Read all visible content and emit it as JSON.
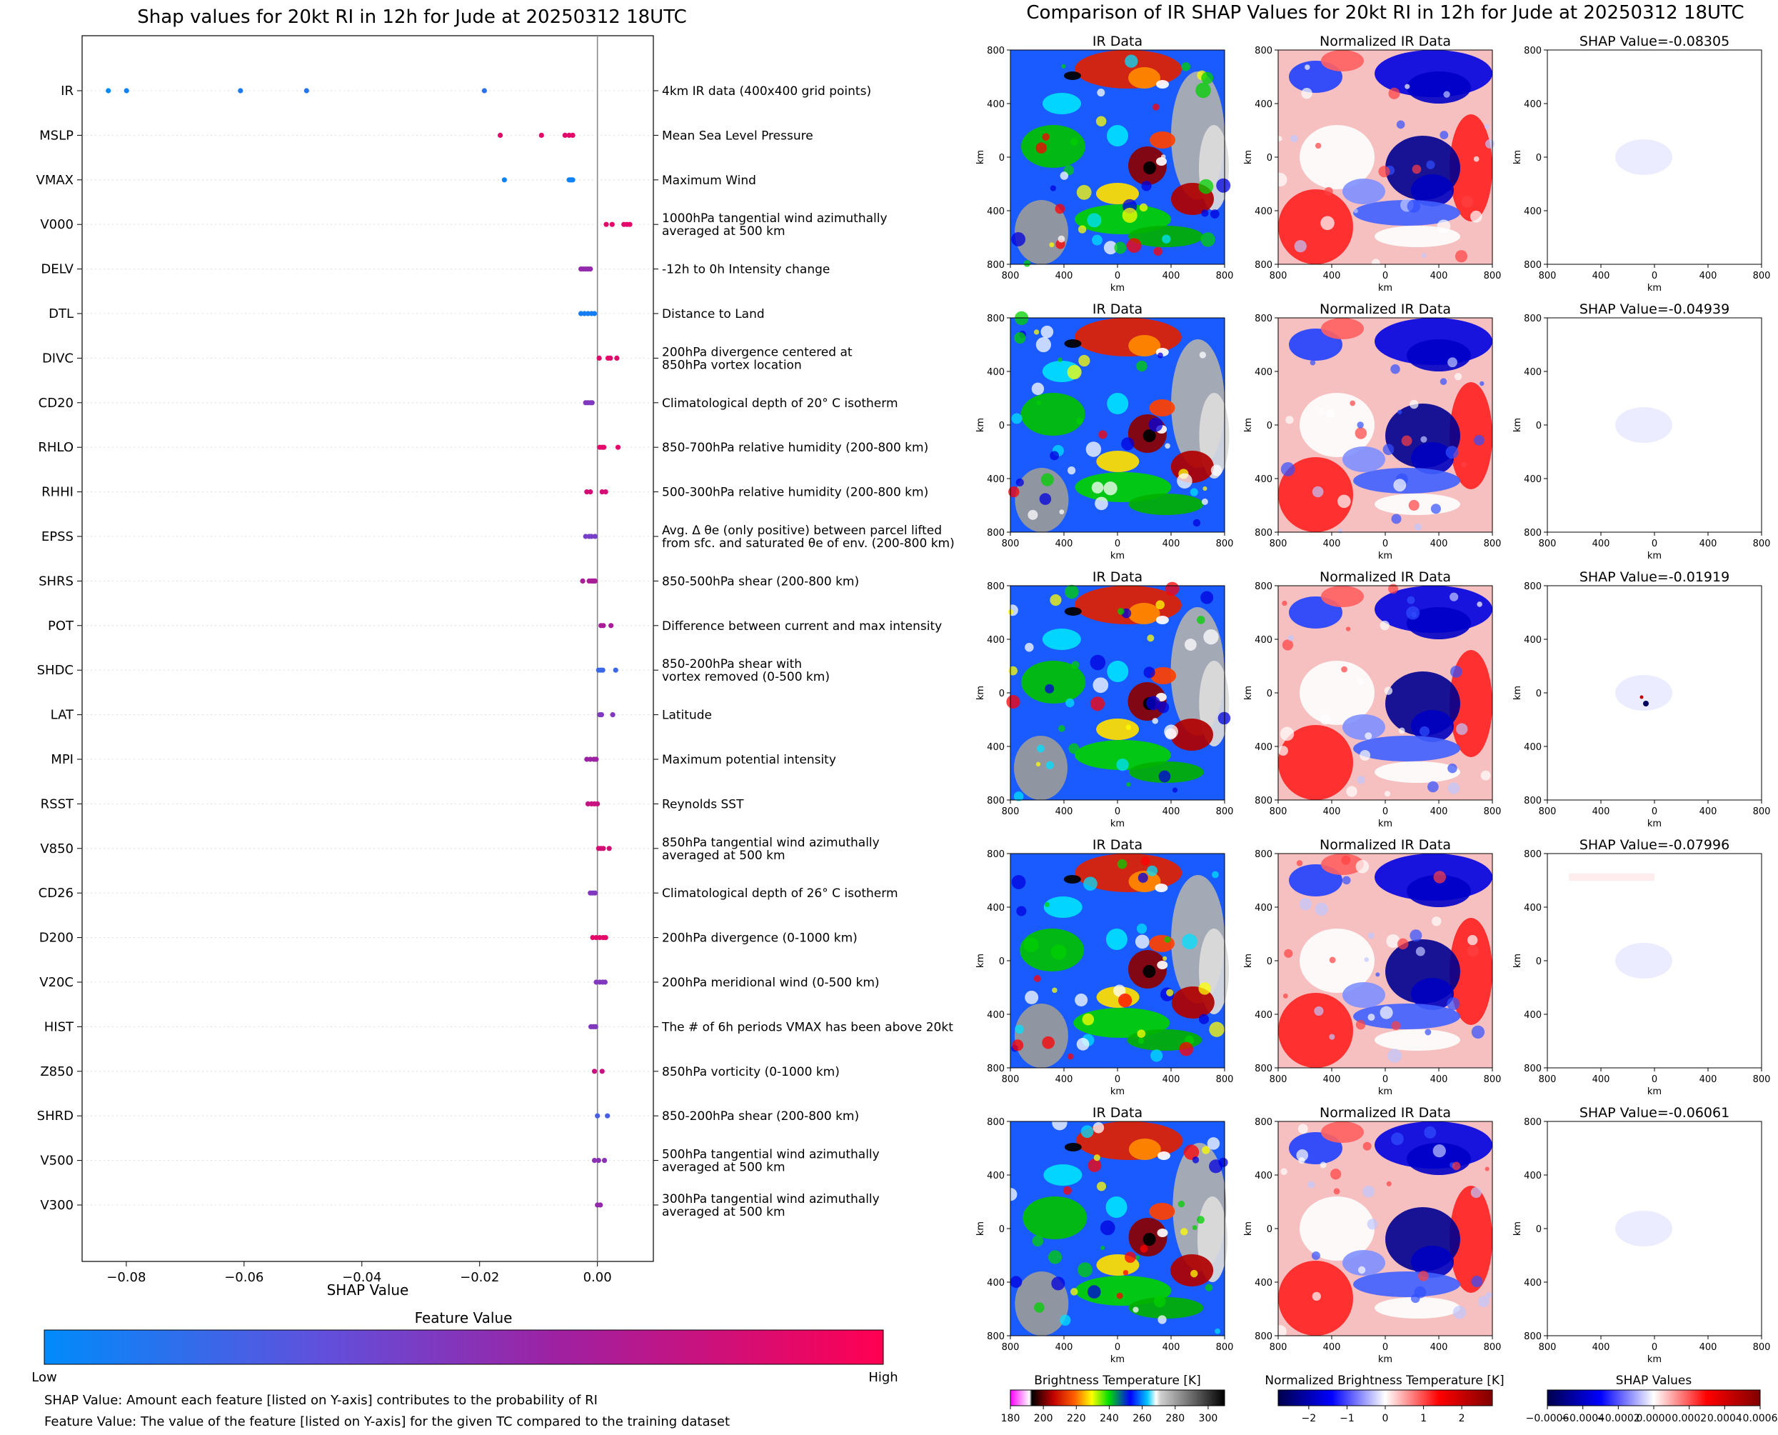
{
  "chart_data": [
    {
      "type": "scatter",
      "title": "Shap values for 20kt RI in 12h for Jude at 20250312 18UTC",
      "xlabel": "SHAP Value",
      "ylabel": "",
      "xlim": [
        -0.0875,
        0.0095
      ],
      "xticks": [
        -0.08,
        -0.06,
        -0.04,
        -0.02,
        0.0
      ],
      "xtick_labels": [
        "−0.08",
        "−0.06",
        "−0.04",
        "−0.02",
        "0.00"
      ],
      "grid": false,
      "features": [
        {
          "name": "IR",
          "desc": [
            "4km IR data (400x400 grid points)"
          ],
          "values": [
            -0.08305,
            -0.07996,
            -0.06061,
            -0.04939,
            -0.01919
          ],
          "feature_values": [
            0.0,
            0.05,
            0.1,
            0.12,
            0.15
          ]
        },
        {
          "name": "MSLP",
          "desc": [
            "Mean Sea Level Pressure"
          ],
          "values": [
            -0.0165,
            -0.0095,
            -0.0055,
            -0.0048,
            -0.0042
          ],
          "feature_values": [
            0.9,
            0.9,
            0.9,
            0.9,
            0.9
          ]
        },
        {
          "name": "VMAX",
          "desc": [
            "Maximum Wind"
          ],
          "values": [
            -0.0158,
            -0.0048,
            -0.0046,
            -0.0044,
            -0.0042
          ],
          "feature_values": [
            0.05,
            0.05,
            0.05,
            0.05,
            0.05
          ]
        },
        {
          "name": "V000",
          "desc": [
            "1000hPa tangential wind azimuthally",
            "averaged at 500 km"
          ],
          "values": [
            0.0015,
            0.0025,
            0.0045,
            0.005,
            0.0055
          ],
          "feature_values": [
            0.9,
            0.9,
            0.9,
            0.9,
            0.9
          ]
        },
        {
          "name": "DELV",
          "desc": [
            "-12h to 0h Intensity change"
          ],
          "values": [
            -0.0028,
            -0.0024,
            -0.002,
            -0.0016,
            -0.0012
          ],
          "feature_values": [
            0.6,
            0.6,
            0.6,
            0.6,
            0.6
          ]
        },
        {
          "name": "DTL",
          "desc": [
            "Distance to Land"
          ],
          "values": [
            -0.0028,
            -0.0022,
            -0.0016,
            -0.001,
            -0.0005
          ],
          "feature_values": [
            0.08,
            0.08,
            0.08,
            0.08,
            0.08
          ]
        },
        {
          "name": "DIVC",
          "desc": [
            "200hPa divergence centered at",
            "850hPa vortex location"
          ],
          "values": [
            0.0003,
            0.0018,
            0.0022,
            0.0033
          ],
          "feature_values": [
            0.9,
            0.9,
            0.9,
            0.9
          ]
        },
        {
          "name": "CD20",
          "desc": [
            "Climatological depth of 20° C isotherm"
          ],
          "values": [
            -0.002,
            -0.0016,
            -0.0012,
            -0.0009
          ],
          "feature_values": [
            0.5,
            0.5,
            0.5,
            0.5
          ]
        },
        {
          "name": "RHLO",
          "desc": [
            "850-700hPa relative humidity (200-800 km)"
          ],
          "values": [
            0.0004,
            0.0008,
            0.0011,
            0.0035
          ],
          "feature_values": [
            0.9,
            0.9,
            0.9,
            0.9
          ]
        },
        {
          "name": "RHHI",
          "desc": [
            "500-300hPa relative humidity (200-800 km)"
          ],
          "values": [
            -0.0018,
            -0.0012,
            0.0008,
            0.0014
          ],
          "feature_values": [
            0.85,
            0.85,
            0.85,
            0.85
          ]
        },
        {
          "name": "EPSS",
          "desc": [
            "Avg. Δ θe (only positive) between parcel lifted",
            "from sfc. and saturated θe of env. (200-800 km)"
          ],
          "values": [
            -0.002,
            -0.0014,
            -0.001,
            -0.0004
          ],
          "feature_values": [
            0.45,
            0.45,
            0.45,
            0.45
          ]
        },
        {
          "name": "SHRS",
          "desc": [
            "850-500hPa shear (200-800 km)"
          ],
          "values": [
            -0.0025,
            -0.0014,
            -0.001,
            -0.0007,
            -0.0004
          ],
          "feature_values": [
            0.7,
            0.7,
            0.7,
            0.7,
            0.7
          ]
        },
        {
          "name": "POT",
          "desc": [
            "Difference between current and max intensity"
          ],
          "values": [
            0.0006,
            0.001,
            0.0023
          ],
          "feature_values": [
            0.7,
            0.7,
            0.7
          ]
        },
        {
          "name": "SHDC",
          "desc": [
            "850-200hPa shear with",
            "vortex removed (0-500 km)"
          ],
          "values": [
            0.0002,
            0.0006,
            0.0009,
            0.0031
          ],
          "feature_values": [
            0.2,
            0.2,
            0.2,
            0.2
          ]
        },
        {
          "name": "LAT",
          "desc": [
            "Latitude"
          ],
          "values": [
            0.0004,
            0.0007,
            0.0026
          ],
          "feature_values": [
            0.5,
            0.5,
            0.5
          ]
        },
        {
          "name": "MPI",
          "desc": [
            "Maximum potential intensity"
          ],
          "values": [
            -0.0018,
            -0.0012,
            -0.0006,
            -0.0002
          ],
          "feature_values": [
            0.65,
            0.65,
            0.65,
            0.65
          ]
        },
        {
          "name": "RSST",
          "desc": [
            "Reynolds SST"
          ],
          "values": [
            -0.0016,
            -0.001,
            -0.0005,
            0.0
          ],
          "feature_values": [
            0.8,
            0.8,
            0.8,
            0.8
          ]
        },
        {
          "name": "V850",
          "desc": [
            "850hPa tangential wind azimuthally",
            "averaged at 500 km"
          ],
          "values": [
            0.0002,
            0.0006,
            0.001,
            0.002
          ],
          "feature_values": [
            0.85,
            0.85,
            0.85,
            0.85
          ]
        },
        {
          "name": "CD26",
          "desc": [
            "Climatological depth of 26° C isotherm"
          ],
          "values": [
            -0.0012,
            -0.0008,
            -0.0004
          ],
          "feature_values": [
            0.5,
            0.5,
            0.5
          ]
        },
        {
          "name": "D200",
          "desc": [
            "200hPa divergence (0-1000 km)"
          ],
          "values": [
            -0.0008,
            -0.0002,
            0.0004,
            0.001,
            0.0014
          ],
          "feature_values": [
            0.9,
            0.9,
            0.9,
            0.9,
            0.9
          ]
        },
        {
          "name": "V20C",
          "desc": [
            "200hPa meridional wind (0-500 km)"
          ],
          "values": [
            -0.0002,
            0.0004,
            0.0009,
            0.0013
          ],
          "feature_values": [
            0.5,
            0.5,
            0.5,
            0.5
          ]
        },
        {
          "name": "HIST",
          "desc": [
            "The # of 6h periods VMAX has been above 20kt"
          ],
          "values": [
            -0.0011,
            -0.0007,
            -0.0003
          ],
          "feature_values": [
            0.5,
            0.5,
            0.5
          ]
        },
        {
          "name": "Z850",
          "desc": [
            "850hPa vorticity (0-1000 km)"
          ],
          "values": [
            -0.0005,
            0.0008
          ],
          "feature_values": [
            0.8,
            0.8
          ]
        },
        {
          "name": "SHRD",
          "desc": [
            "850-200hPa shear (200-800 km)"
          ],
          "values": [
            0.0,
            0.0017
          ],
          "feature_values": [
            0.25,
            0.25
          ]
        },
        {
          "name": "V500",
          "desc": [
            "500hPa tangential wind azimuthally",
            "averaged at 500 km"
          ],
          "values": [
            -0.0005,
            0.0002,
            0.0012
          ],
          "feature_values": [
            0.55,
            0.55,
            0.55
          ]
        },
        {
          "name": "V300",
          "desc": [
            "300hPa tangential wind azimuthally",
            "averaged at 500 km"
          ],
          "values": [
            0.0,
            0.0005
          ],
          "feature_values": [
            0.6,
            0.6
          ]
        }
      ]
    },
    {
      "type": "heatmap",
      "title": "Comparison of IR SHAP Values for 20kt RI in 12h for Jude at 20250312 18UTC",
      "panel_titles": [
        "IR Data",
        "Normalized IR Data"
      ],
      "shap_title_prefix": "SHAP Value=",
      "shap_values": [
        "-0.08305",
        "-0.04939",
        "-0.01919",
        "-0.07996",
        "-0.06061"
      ],
      "axis_label": "km",
      "tick_labels": [
        "800",
        "400",
        "0",
        "400",
        "800"
      ],
      "colorbars": [
        {
          "label": "Brightness Temperature [K]",
          "ticks": [
            "180",
            "200",
            "220",
            "240",
            "260",
            "280",
            "300"
          ],
          "range": [
            180,
            310
          ]
        },
        {
          "label": "Normalized Brightness Temperature [K]",
          "ticks": [
            "−2",
            "−1",
            "0",
            "1",
            "2"
          ],
          "range": [
            -2.8,
            2.8
          ]
        },
        {
          "label": "SHAP Values",
          "ticks": [
            "−0.0006",
            "−0.0004",
            "−0.0002",
            "0.0000",
            "0.0002",
            "0.0004",
            "0.0006"
          ],
          "range": [
            -0.0006,
            0.0006
          ]
        }
      ]
    }
  ],
  "legend": {
    "title": "Feature Value",
    "low": "Low",
    "high": "High",
    "colors": [
      "#008bfb",
      "#6050dc",
      "#a020a0",
      "#ff0052"
    ]
  },
  "notes": [
    "SHAP Value: Amount each feature [listed on Y-axis] contributes to the probability of RI",
    "Feature Value: The value of the feature [listed on Y-axis] for the given TC compared to the training dataset"
  ]
}
